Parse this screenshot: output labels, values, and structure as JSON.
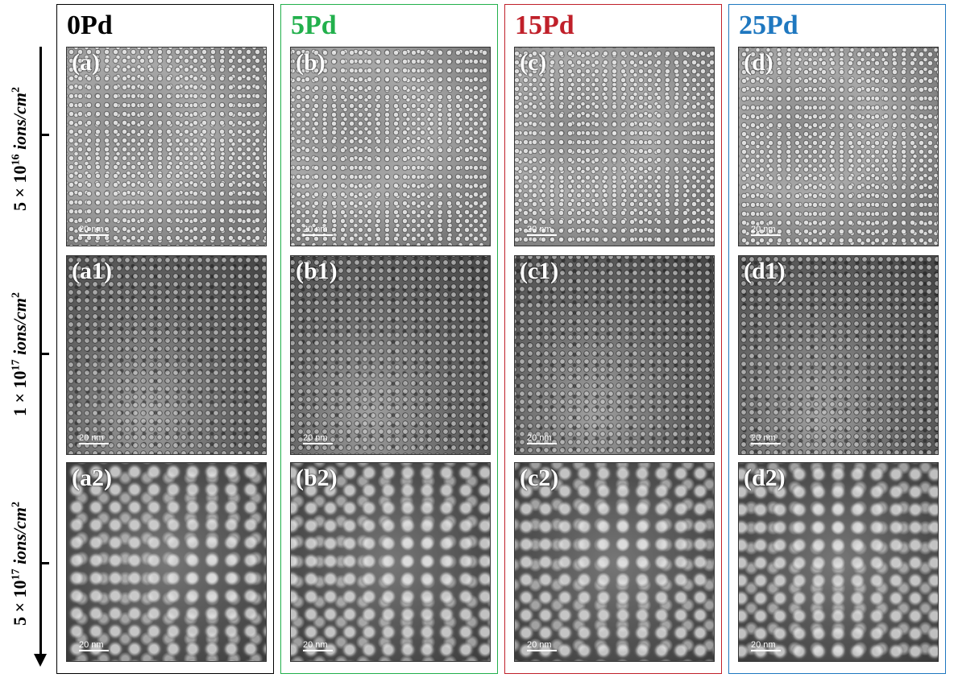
{
  "columns": [
    {
      "title": "0Pd",
      "color": "#000000",
      "panels": [
        "(a)",
        "(a1)",
        "(a2)"
      ]
    },
    {
      "title": "5Pd",
      "color": "#22b04c",
      "panels": [
        "(b)",
        "(b1)",
        "(b2)"
      ]
    },
    {
      "title": "15Pd",
      "color": "#c0202a",
      "panels": [
        "(c)",
        "(c1)",
        "(c2)"
      ]
    },
    {
      "title": "25Pd",
      "color": "#1f78c0",
      "panels": [
        "(d)",
        "(d1)",
        "(d2)"
      ]
    }
  ],
  "scale_bar": "20 nm",
  "doses": [
    {
      "mant": "5 × 10",
      "exp": "16",
      "unit": "ions/cm",
      "unit_exp": "2"
    },
    {
      "mant": "1 × 10",
      "exp": "17",
      "unit": "ions/cm",
      "unit_exp": "2"
    },
    {
      "mant": "5 × 10",
      "exp": "17",
      "unit": "ions/cm",
      "unit_exp": "2"
    }
  ]
}
